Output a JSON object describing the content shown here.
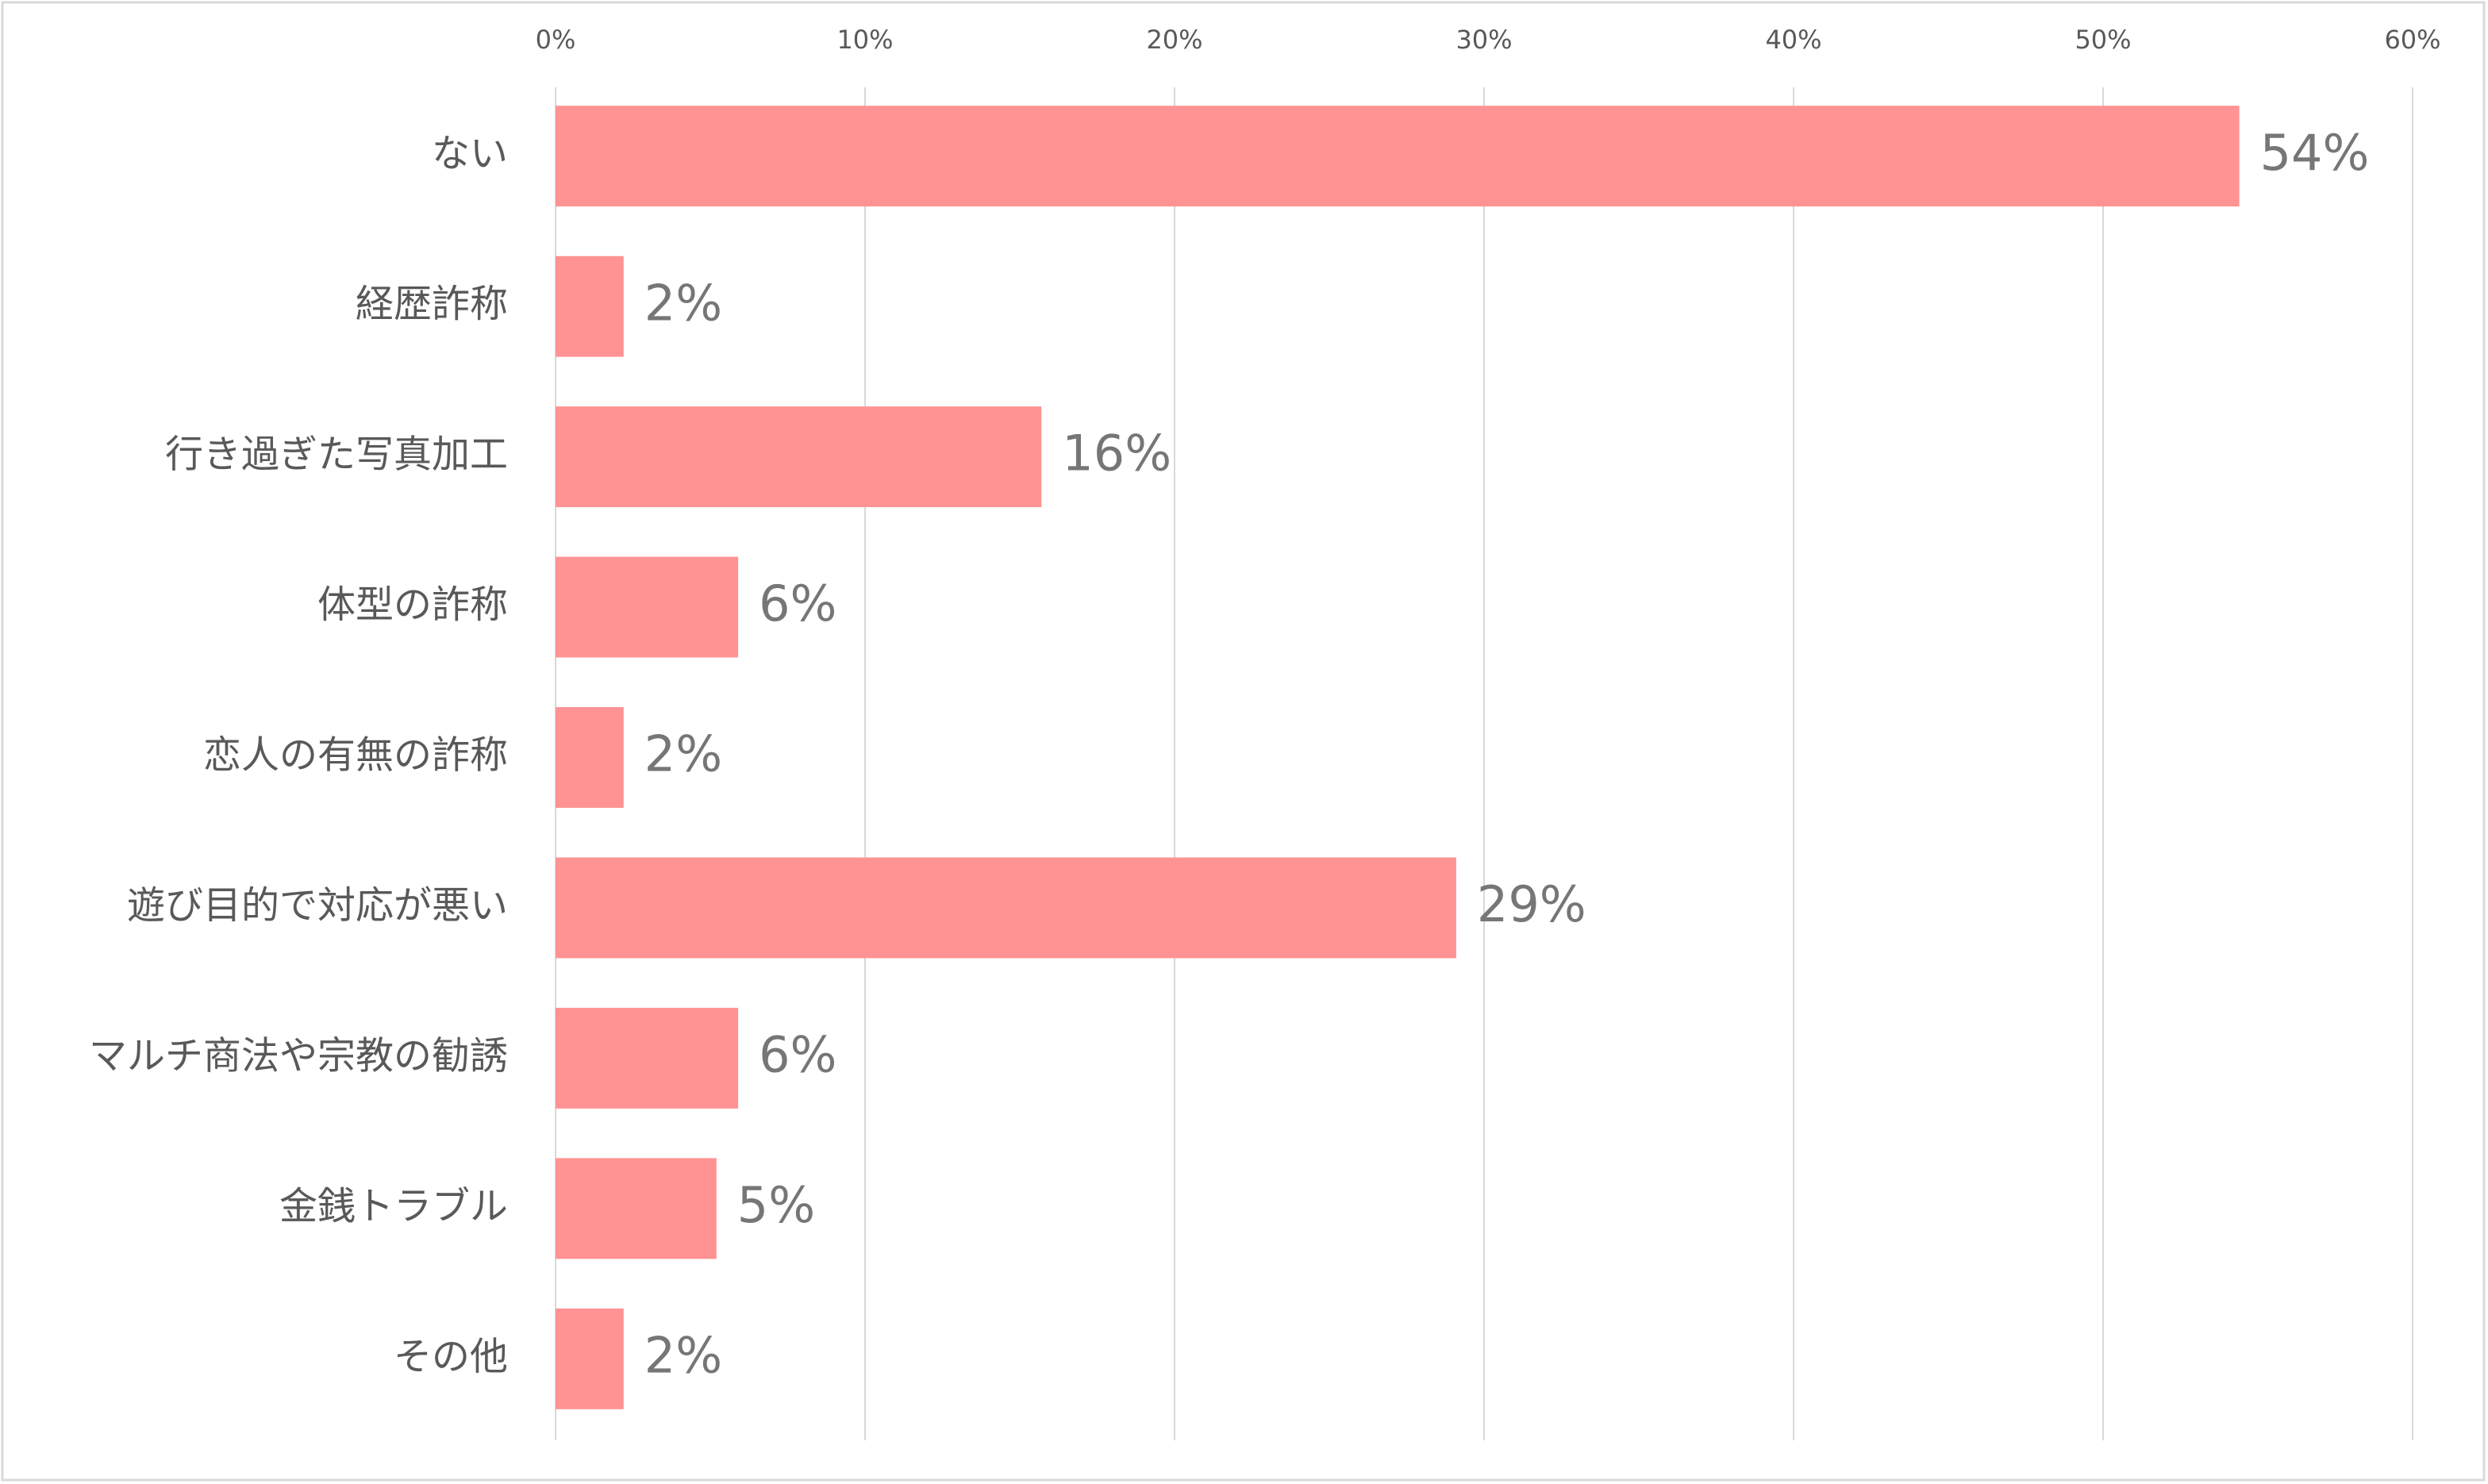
{
  "chart_data": {
    "type": "barh",
    "categories": [
      "ない",
      "経歴詐称",
      "行き過ぎた写真加工",
      "体型の詐称",
      "恋人の有無の詐称",
      "遊び目的で対応が悪い",
      "マルチ商法や宗教の勧誘",
      "金銭トラブル",
      "その他"
    ],
    "values": [
      54.4,
      2.2,
      15.7,
      5.9,
      2.2,
      29.1,
      5.9,
      5.2,
      2.2
    ],
    "value_labels": [
      "54%",
      "2%",
      "16%",
      "6%",
      "2%",
      "29%",
      "6%",
      "5%",
      "2%"
    ],
    "color": "#ff9393",
    "xlim": [
      0,
      60
    ],
    "xticks": [
      {
        "value": 0,
        "label": "0%"
      },
      {
        "value": 10,
        "label": "10%"
      },
      {
        "value": 20,
        "label": "20%"
      },
      {
        "value": 30,
        "label": "30%"
      },
      {
        "value": 40,
        "label": "40%"
      },
      {
        "value": 50,
        "label": "50%"
      },
      {
        "value": 60,
        "label": "60%"
      }
    ],
    "grid": true
  }
}
